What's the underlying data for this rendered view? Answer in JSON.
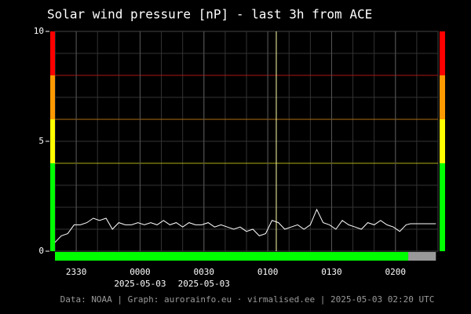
{
  "chart_data": {
    "type": "line",
    "title": "Solar wind pressure [nP] - last 3h from ACE",
    "footer": "Data: NOAA | Graph: aurorainfo.eu · virmalised.ee | 2025-05-03 02:20 UTC",
    "xlim": [
      -40,
      140
    ],
    "xticks": [
      {
        "value": -30,
        "label": "2330"
      },
      {
        "value": 0,
        "label": "0000"
      },
      {
        "value": 30,
        "label": "0030"
      },
      {
        "value": 60,
        "label": "0100"
      },
      {
        "value": 90,
        "label": "0130"
      },
      {
        "value": 120,
        "label": "0200"
      }
    ],
    "date_labels": [
      {
        "value": 0,
        "label": "2025-05-03"
      },
      {
        "value": 30,
        "label": "2025-05-03"
      }
    ],
    "xgrid": [
      -30,
      -20,
      -10,
      0,
      10,
      20,
      30,
      40,
      50,
      60,
      70,
      80,
      90,
      100,
      110,
      120,
      130
    ],
    "marker_x": 64,
    "ylim": [
      0,
      10
    ],
    "yticks": [
      0,
      5,
      10
    ],
    "ygrid": [
      1,
      2,
      3,
      4,
      5,
      6,
      7,
      8,
      9
    ],
    "bands": [
      {
        "from": 8,
        "to": 10,
        "color": "#ff0000"
      },
      {
        "from": 6,
        "to": 8,
        "color": "#ff9900"
      },
      {
        "from": 4,
        "to": 6,
        "color": "#ffff00"
      },
      {
        "from": 0,
        "to": 4,
        "color": "#00ff00"
      }
    ],
    "status_bar": [
      {
        "from": -40,
        "to": 126,
        "color": "#00ff00"
      },
      {
        "from": 126,
        "to": 139,
        "color": "#999999"
      }
    ],
    "series": [
      {
        "color": "#ffffff",
        "x": [
          -40,
          -37,
          -34,
          -31,
          -28,
          -25,
          -22,
          -19,
          -16,
          -13,
          -10,
          -7,
          -4,
          -1,
          2,
          5,
          8,
          11,
          14,
          17,
          20,
          23,
          26,
          29,
          32,
          35,
          38,
          41,
          44,
          47,
          50,
          53,
          56,
          59,
          62,
          65,
          68,
          71,
          74,
          77,
          80,
          83,
          86,
          89,
          92,
          95,
          98,
          101,
          104,
          107,
          110,
          113,
          116,
          119,
          122,
          125,
          127,
          139
        ],
        "values": [
          0.4,
          0.7,
          0.8,
          1.2,
          1.2,
          1.3,
          1.5,
          1.4,
          1.5,
          1.0,
          1.3,
          1.2,
          1.2,
          1.3,
          1.2,
          1.3,
          1.2,
          1.4,
          1.2,
          1.3,
          1.1,
          1.3,
          1.2,
          1.2,
          1.3,
          1.1,
          1.2,
          1.1,
          1.0,
          1.1,
          0.9,
          1.0,
          0.7,
          0.8,
          1.4,
          1.3,
          1.0,
          1.1,
          1.2,
          1.0,
          1.2,
          1.9,
          1.3,
          1.2,
          1.0,
          1.4,
          1.2,
          1.1,
          1.0,
          1.3,
          1.2,
          1.4,
          1.2,
          1.1,
          0.9,
          1.2,
          1.25,
          1.25
        ]
      }
    ]
  }
}
